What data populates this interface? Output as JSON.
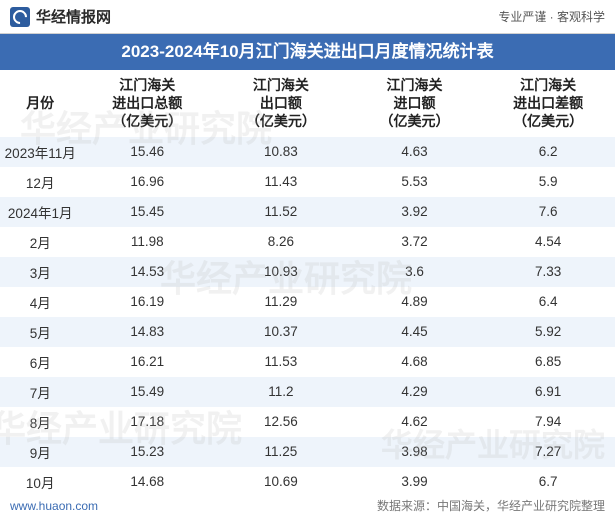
{
  "topbar": {
    "site_name": "华经情报网",
    "tagline": "专业严谨 · 客观科学"
  },
  "title": "2023-2024年10月江门海关进出口月度情况统计表",
  "table": {
    "columns": [
      "月份",
      "江门海关\n进出口总额\n（亿美元）",
      "江门海关\n出口额\n（亿美元）",
      "江门海关\n进口额\n（亿美元）",
      "江门海关\n进出口差额\n（亿美元）"
    ],
    "rows": [
      [
        "2023年11月",
        "15.46",
        "10.83",
        "4.63",
        "6.2"
      ],
      [
        "12月",
        "16.96",
        "11.43",
        "5.53",
        "5.9"
      ],
      [
        "2024年1月",
        "15.45",
        "11.52",
        "3.92",
        "7.6"
      ],
      [
        "2月",
        "11.98",
        "8.26",
        "3.72",
        "4.54"
      ],
      [
        "3月",
        "14.53",
        "10.93",
        "3.6",
        "7.33"
      ],
      [
        "4月",
        "16.19",
        "11.29",
        "4.89",
        "6.4"
      ],
      [
        "5月",
        "14.83",
        "10.37",
        "4.45",
        "5.92"
      ],
      [
        "6月",
        "16.21",
        "11.53",
        "4.68",
        "6.85"
      ],
      [
        "7月",
        "15.49",
        "11.2",
        "4.29",
        "6.91"
      ],
      [
        "8月",
        "17.18",
        "12.56",
        "4.62",
        "7.94"
      ],
      [
        "9月",
        "15.23",
        "11.25",
        "3.98",
        "7.27"
      ],
      [
        "10月",
        "14.68",
        "10.69",
        "3.99",
        "6.7"
      ]
    ]
  },
  "footer": {
    "url": "www.huaon.com",
    "source": "数据来源：中国海关，华经产业研究院整理"
  },
  "watermark": "华经产业研究院",
  "styling": {
    "title_bg": "#3b6cb3",
    "title_fg": "#ffffff",
    "row_odd_bg": "#eef4fb",
    "row_even_bg": "#ffffff",
    "header_fontsize": 14,
    "cell_fontsize": 13.5,
    "title_fontsize": 17,
    "footer_url_color": "#3b6cb3",
    "footer_source_color": "#777777"
  }
}
